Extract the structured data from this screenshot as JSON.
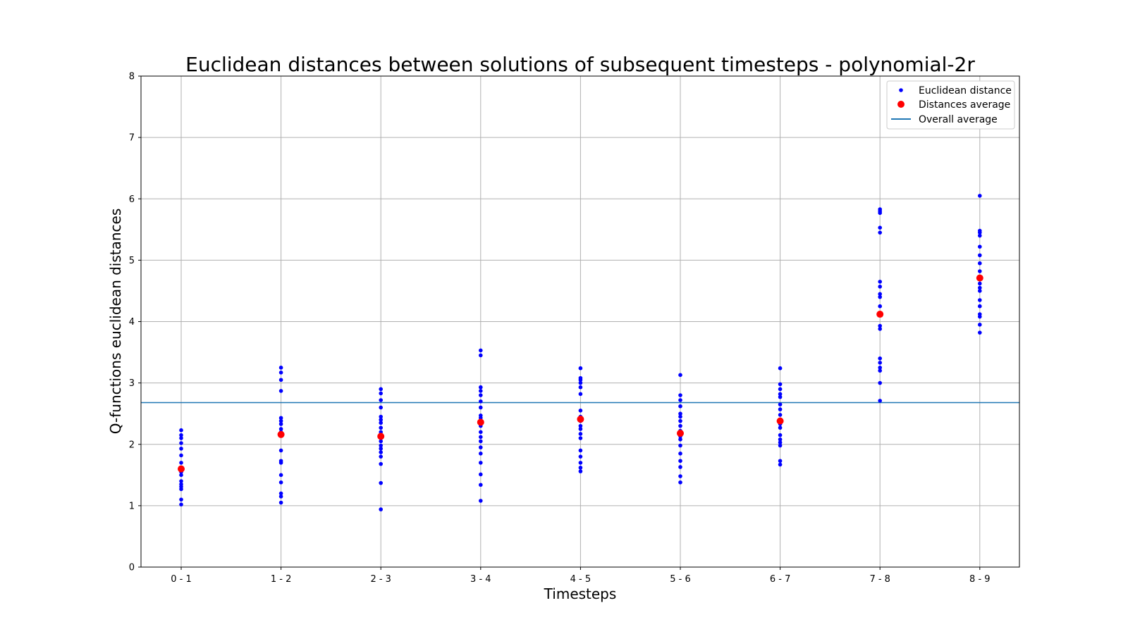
{
  "chart_data": {
    "type": "scatter",
    "title": "Euclidean distances between solutions of subsequent timesteps - polynomial-2r",
    "xlabel": "Timesteps",
    "ylabel": "Q-functions euclidean distances",
    "categories": [
      "0 - 1",
      "1 - 2",
      "2 - 3",
      "3 - 4",
      "4 - 5",
      "5 - 6",
      "6 - 7",
      "7 - 8",
      "8 - 9"
    ],
    "ylim": [
      0,
      8
    ],
    "yticks": [
      "0",
      "1",
      "2",
      "3",
      "4",
      "5",
      "6",
      "7",
      "8"
    ],
    "grid": true,
    "legend_position": "top-right",
    "series": [
      {
        "name": "Euclidean distance",
        "marker": "small-dot",
        "color": "#0000ff",
        "points": [
          [
            1.02,
            1.1,
            1.27,
            1.31,
            1.35,
            1.4,
            1.5,
            1.55,
            1.62,
            1.7,
            1.82,
            1.93,
            2.02,
            2.1,
            2.15,
            2.23
          ],
          [
            1.05,
            1.15,
            1.2,
            1.38,
            1.5,
            1.7,
            1.73,
            1.9,
            2.15,
            2.2,
            2.25,
            2.33,
            2.38,
            2.43,
            2.87,
            3.05,
            3.17,
            3.25
          ],
          [
            0.94,
            1.37,
            1.68,
            1.8,
            1.87,
            1.93,
            1.98,
            2.05,
            2.12,
            2.2,
            2.27,
            2.35,
            2.4,
            2.45,
            2.6,
            2.72,
            2.83,
            2.9
          ],
          [
            1.08,
            1.34,
            1.51,
            1.7,
            1.85,
            1.95,
            2.05,
            2.12,
            2.2,
            2.3,
            2.38,
            2.43,
            2.47,
            2.6,
            2.7,
            2.8,
            2.87,
            2.93,
            3.45,
            3.53
          ],
          [
            1.56,
            1.62,
            1.7,
            1.8,
            1.9,
            2.1,
            2.17,
            2.25,
            2.3,
            2.38,
            2.45,
            2.55,
            2.82,
            2.93,
            3.0,
            3.05,
            3.08,
            3.24
          ],
          [
            1.38,
            1.48,
            1.63,
            1.73,
            1.85,
            1.98,
            2.08,
            2.13,
            2.22,
            2.3,
            2.38,
            2.45,
            2.5,
            2.62,
            2.72,
            2.8,
            3.13
          ],
          [
            1.67,
            1.73,
            1.98,
            2.03,
            2.08,
            2.15,
            2.27,
            2.33,
            2.4,
            2.48,
            2.57,
            2.65,
            2.77,
            2.82,
            2.9,
            2.98,
            3.24
          ],
          [
            2.71,
            3.0,
            3.2,
            3.25,
            3.33,
            3.4,
            3.88,
            3.93,
            4.1,
            4.25,
            4.4,
            4.45,
            4.57,
            4.65,
            5.45,
            5.53,
            5.77,
            5.8,
            5.83
          ],
          [
            3.82,
            3.95,
            4.08,
            4.12,
            4.25,
            4.35,
            4.5,
            4.55,
            4.62,
            4.7,
            4.82,
            4.95,
            5.08,
            5.22,
            5.4,
            5.45,
            5.48,
            6.05
          ]
        ]
      },
      {
        "name": "Distances average",
        "marker": "large-dot",
        "color": "#ff0000",
        "values": [
          1.6,
          2.16,
          2.13,
          2.36,
          2.41,
          2.18,
          2.38,
          4.12,
          4.71
        ]
      },
      {
        "name": "Overall average",
        "marker": "hline",
        "color": "#1f77b4",
        "value": 2.68
      }
    ]
  }
}
